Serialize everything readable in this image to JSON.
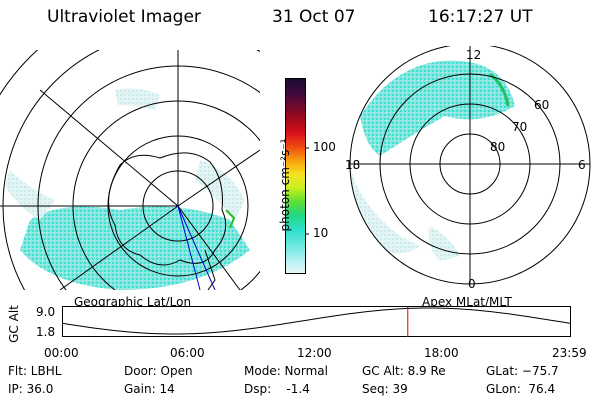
{
  "header": {
    "instrument": "Ultraviolet Imager",
    "date": "31 Oct 07",
    "time": "16:17:27 UT"
  },
  "colorbar": {
    "unit_label": "photon cm⁻²s⁻¹",
    "ticks": [
      "100",
      "10"
    ],
    "colors": [
      "#1a0a2e",
      "#3a0a40",
      "#6e0a30",
      "#a00a1a",
      "#d8101a",
      "#f04a10",
      "#f8a010",
      "#f8e020",
      "#c8f020",
      "#60e030",
      "#20d880",
      "#30e0d0",
      "#70e8e0",
      "#b0f0f0",
      "#e8f8f8"
    ]
  },
  "left_map": {
    "label": "Geographic Lat/Lon"
  },
  "right_map": {
    "label": "Apex MLat/MLT",
    "lat_labels": [
      "60",
      "70",
      "80"
    ],
    "mlt_labels": [
      "12",
      "18",
      "6",
      "0"
    ]
  },
  "altitude_plot": {
    "ylabel": "GC Alt",
    "yticks": [
      "9.0",
      "1.8"
    ],
    "xticks": [
      "00:00",
      "06:00",
      "12:00",
      "18:00",
      "23:59"
    ],
    "current_time_hours": 16.29,
    "marker_color": "#e00000"
  },
  "status": {
    "flt": "Flt: LBHL",
    "ip": "IP: 36.0",
    "door": "Door: Open",
    "gain": "Gain: 14",
    "mode": "Mode: Normal",
    "dsp": "Dsp:    -1.4",
    "gc_alt": "GC Alt: 8.9 Re",
    "seq": "Seq: 39",
    "glat": "GLat: −75.7",
    "glon": "GLon:  76.4"
  }
}
